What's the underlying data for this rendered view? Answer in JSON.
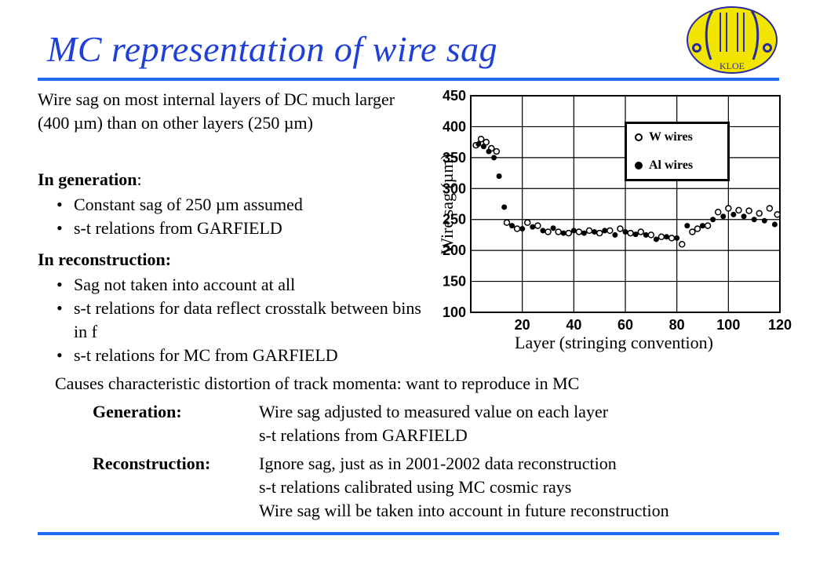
{
  "title": "MC representation of wire sag",
  "logo": {
    "text": "KLOE"
  },
  "intro": "Wire sag on most internal layers of DC much larger (400 µm) than on other layers (250 µm)",
  "generation": {
    "head": "In generation",
    "bullets": [
      "Constant sag of 250 µm assumed",
      "s-t relations from GARFIELD"
    ]
  },
  "reconstruction": {
    "head": "In reconstruction:",
    "bullets": [
      "Sag not taken into account at all",
      "s-t relations for data reflect crosstalk between bins in f",
      "s-t relations for MC from GARFIELD"
    ]
  },
  "causes": "Causes characteristic distortion of track momenta: want to reproduce in MC",
  "plan": {
    "generation_label": "Generation:",
    "generation_lines": [
      "Wire sag adjusted to measured value on each layer",
      "s-t relations from GARFIELD"
    ],
    "reconstruction_label": "Reconstruction:",
    "reconstruction_lines": [
      "Ignore sag, just as in 2001-2002 data reconstruction",
      "s-t relations calibrated using MC cosmic rays",
      "Wire sag will be taken into account in future reconstruction"
    ]
  },
  "colors": {
    "title": "#1f3fd6",
    "rule": "#1f6cf0",
    "logo_bg": "#f2e600",
    "logo_stroke": "#2a2aa0"
  },
  "chart_data": {
    "type": "scatter",
    "xlabel": "Layer (stringing convention)",
    "ylabel": "Wire sag (µm)",
    "xlim": [
      0,
      120
    ],
    "ylim": [
      100,
      450
    ],
    "xticks": [
      20,
      40,
      60,
      80,
      100,
      120
    ],
    "yticks": [
      100,
      150,
      200,
      250,
      300,
      350,
      400,
      450
    ],
    "grid": true,
    "legend_position": "top-right",
    "series": [
      {
        "name": "W wires",
        "marker": "open-circle",
        "points": [
          [
            2,
            370
          ],
          [
            4,
            380
          ],
          [
            6,
            375
          ],
          [
            8,
            365
          ],
          [
            10,
            360
          ],
          [
            14,
            245
          ],
          [
            18,
            235
          ],
          [
            22,
            245
          ],
          [
            26,
            240
          ],
          [
            30,
            230
          ],
          [
            34,
            230
          ],
          [
            38,
            228
          ],
          [
            42,
            230
          ],
          [
            46,
            232
          ],
          [
            50,
            228
          ],
          [
            54,
            232
          ],
          [
            58,
            235
          ],
          [
            62,
            228
          ],
          [
            66,
            230
          ],
          [
            70,
            225
          ],
          [
            74,
            222
          ],
          [
            78,
            220
          ],
          [
            82,
            210
          ],
          [
            86,
            230
          ],
          [
            88,
            235
          ],
          [
            92,
            240
          ],
          [
            96,
            262
          ],
          [
            100,
            268
          ],
          [
            104,
            265
          ],
          [
            108,
            264
          ],
          [
            112,
            260
          ],
          [
            116,
            268
          ],
          [
            119,
            258
          ]
        ]
      },
      {
        "name": "Al wires",
        "marker": "filled-circle",
        "points": [
          [
            3,
            372
          ],
          [
            5,
            368
          ],
          [
            7,
            360
          ],
          [
            9,
            350
          ],
          [
            11,
            320
          ],
          [
            13,
            270
          ],
          [
            16,
            240
          ],
          [
            20,
            235
          ],
          [
            24,
            238
          ],
          [
            28,
            232
          ],
          [
            32,
            236
          ],
          [
            36,
            228
          ],
          [
            40,
            232
          ],
          [
            44,
            228
          ],
          [
            48,
            230
          ],
          [
            52,
            232
          ],
          [
            56,
            225
          ],
          [
            60,
            230
          ],
          [
            64,
            226
          ],
          [
            68,
            225
          ],
          [
            72,
            218
          ],
          [
            76,
            222
          ],
          [
            80,
            220
          ],
          [
            84,
            240
          ],
          [
            90,
            240
          ],
          [
            94,
            250
          ],
          [
            98,
            255
          ],
          [
            102,
            258
          ],
          [
            106,
            255
          ],
          [
            110,
            250
          ],
          [
            114,
            248
          ],
          [
            118,
            242
          ]
        ]
      }
    ]
  }
}
